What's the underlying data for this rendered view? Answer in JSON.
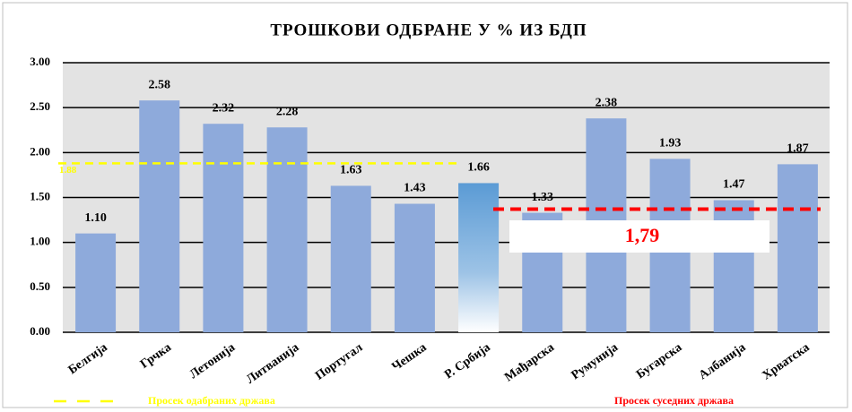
{
  "chart_data": {
    "type": "bar",
    "title": "ТРОШКОВИ ОДБРАНЕ У % ИЗ БДП",
    "categories": [
      "Белгија",
      "Грчка",
      "Летонија",
      "Литванија",
      "Португал",
      "Чешка",
      "Р. Србија",
      "Мађарска",
      "Румунија",
      "Бугарска",
      "Албанија",
      "Хрватска"
    ],
    "values": [
      1.1,
      2.58,
      2.32,
      2.28,
      1.63,
      1.43,
      1.66,
      1.33,
      2.38,
      1.93,
      1.47,
      1.87
    ],
    "value_labels": [
      "1.10",
      "2.58",
      "2.32",
      "2.28",
      "1.63",
      "1.43",
      "1.66",
      "1.33",
      "2.38",
      "1.93",
      "1.47",
      "1.87"
    ],
    "color": "#8eaadb",
    "highlight_color": "#5b9bd5",
    "ylim": [
      0,
      3
    ],
    "yticks": [
      {
        "value": 0,
        "label": "0.00"
      },
      {
        "value": 0.5,
        "label": "0.50"
      },
      {
        "value": 1,
        "label": "1.00"
      },
      {
        "value": 1.5,
        "label": "1.50"
      },
      {
        "value": 2,
        "label": "2.00"
      },
      {
        "value": 2.5,
        "label": "2.50"
      },
      {
        "value": 3,
        "label": "3.00"
      }
    ],
    "grid": true,
    "reference_lines": [
      {
        "name": "Просек одабраних држава",
        "color": "#ffff00",
        "value": 1.88,
        "value_label": "1.88"
      },
      {
        "name": "Просек суседних држава",
        "color": "#ff0000",
        "value": 1.37
      }
    ],
    "annotation": "1,79"
  }
}
